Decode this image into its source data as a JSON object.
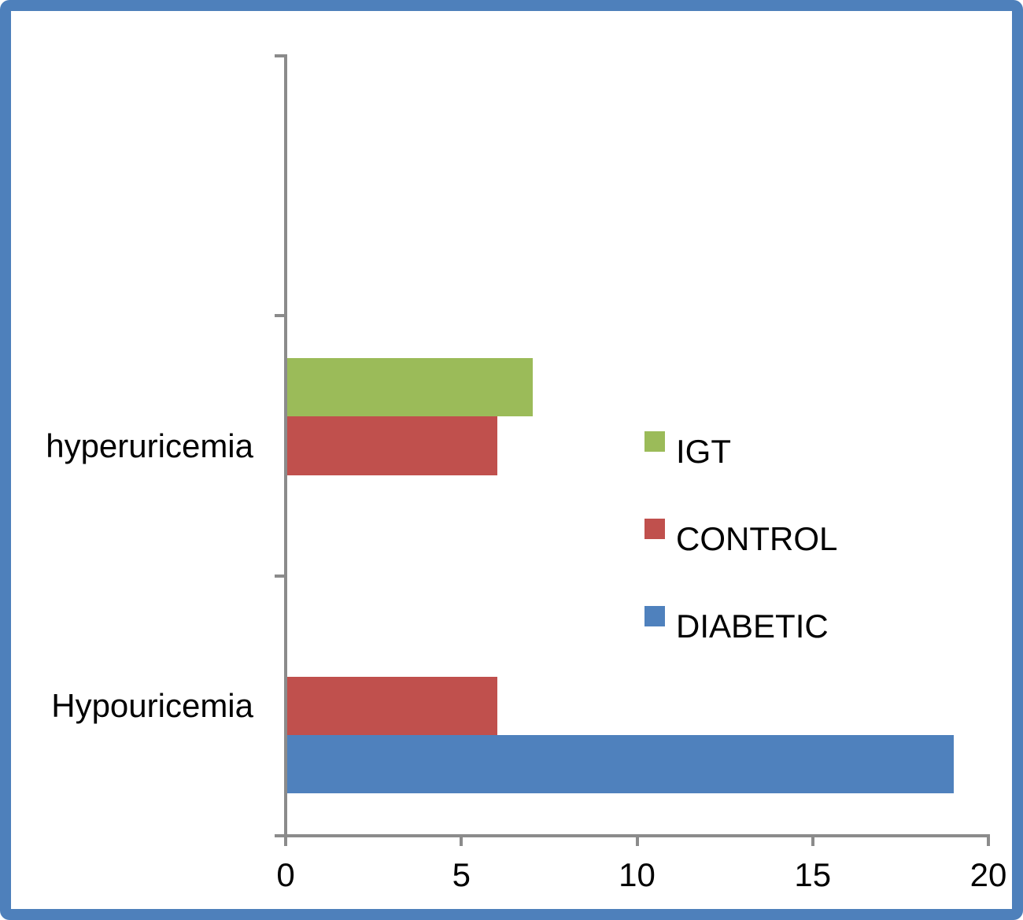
{
  "chart_data": {
    "type": "bar",
    "orientation": "horizontal",
    "title": "",
    "xlabel": "",
    "ylabel": "",
    "categories": [
      "hyperuricemia",
      "Hypouricemia"
    ],
    "series": [
      {
        "name": "IGT",
        "color": "#9bbb59",
        "values": [
          7,
          0
        ]
      },
      {
        "name": "CONTROL",
        "color": "#c0504d",
        "values": [
          6,
          6
        ]
      },
      {
        "name": "DIABETIC",
        "color": "#4f81bd",
        "values": [
          0,
          19
        ]
      }
    ],
    "xlim": [
      0,
      20
    ],
    "x_ticks": [
      0,
      5,
      10,
      15,
      20
    ],
    "grid": false,
    "legend_position": "middle-right",
    "legend_order": [
      "IGT",
      "CONTROL",
      "DIABETIC"
    ],
    "axis_color": "#8b8b8b",
    "frame_color": "#4e80bb",
    "text_color": "#000000"
  }
}
